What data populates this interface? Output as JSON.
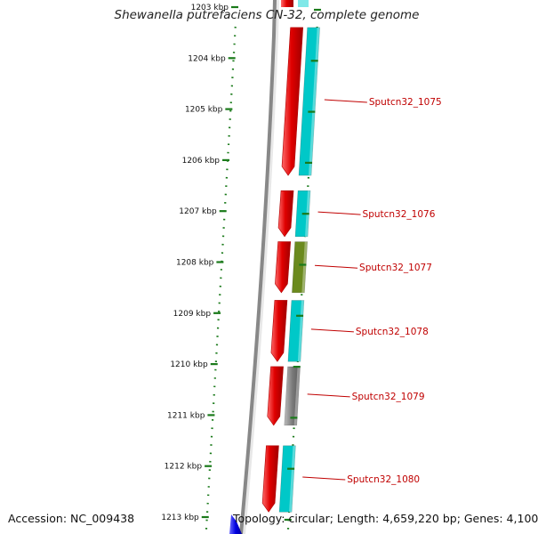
{
  "header": {
    "title": "Shewanella putrefaciens CN-32, complete genome"
  },
  "footer": {
    "accession": "Accession: NC_009438",
    "topology": "Topology: circular; Length: 4,659,220 bp; Genes: 4,100"
  },
  "ruler": {
    "unit": "kbp",
    "ticks": [
      "1203 kbp",
      "1204 kbp",
      "1205 kbp",
      "1206 kbp",
      "1207 kbp",
      "1208 kbp",
      "1209 kbp",
      "1210 kbp",
      "1211 kbp",
      "1212 kbp",
      "1213 kbp"
    ]
  },
  "genes": [
    {
      "label": "Sputcn32_1075",
      "start_kbp": 1203.4,
      "end_kbp": 1206.3,
      "color": "#00c8c8"
    },
    {
      "label": "Sputcn32_1076",
      "start_kbp": 1206.6,
      "end_kbp": 1207.5,
      "color": "#00c8c8"
    },
    {
      "label": "Sputcn32_1077",
      "start_kbp": 1207.6,
      "end_kbp": 1208.6,
      "color": "#6b8a1e"
    },
    {
      "label": "Sputcn32_1078",
      "start_kbp": 1208.75,
      "end_kbp": 1209.95,
      "color": "#00c8c8"
    },
    {
      "label": "Sputcn32_1079",
      "start_kbp": 1210.05,
      "end_kbp": 1211.2,
      "color": "#707070"
    },
    {
      "label": "Sputcn32_1080",
      "start_kbp": 1211.6,
      "end_kbp": 1212.9,
      "color": "#00c8c8"
    }
  ],
  "colors": {
    "forward_cds": "#e00000",
    "backbone": "#888888",
    "tick": "#1a7a1a",
    "label": "#c00000",
    "label_line": "#c00000",
    "blue_feature": "#0000e0"
  }
}
